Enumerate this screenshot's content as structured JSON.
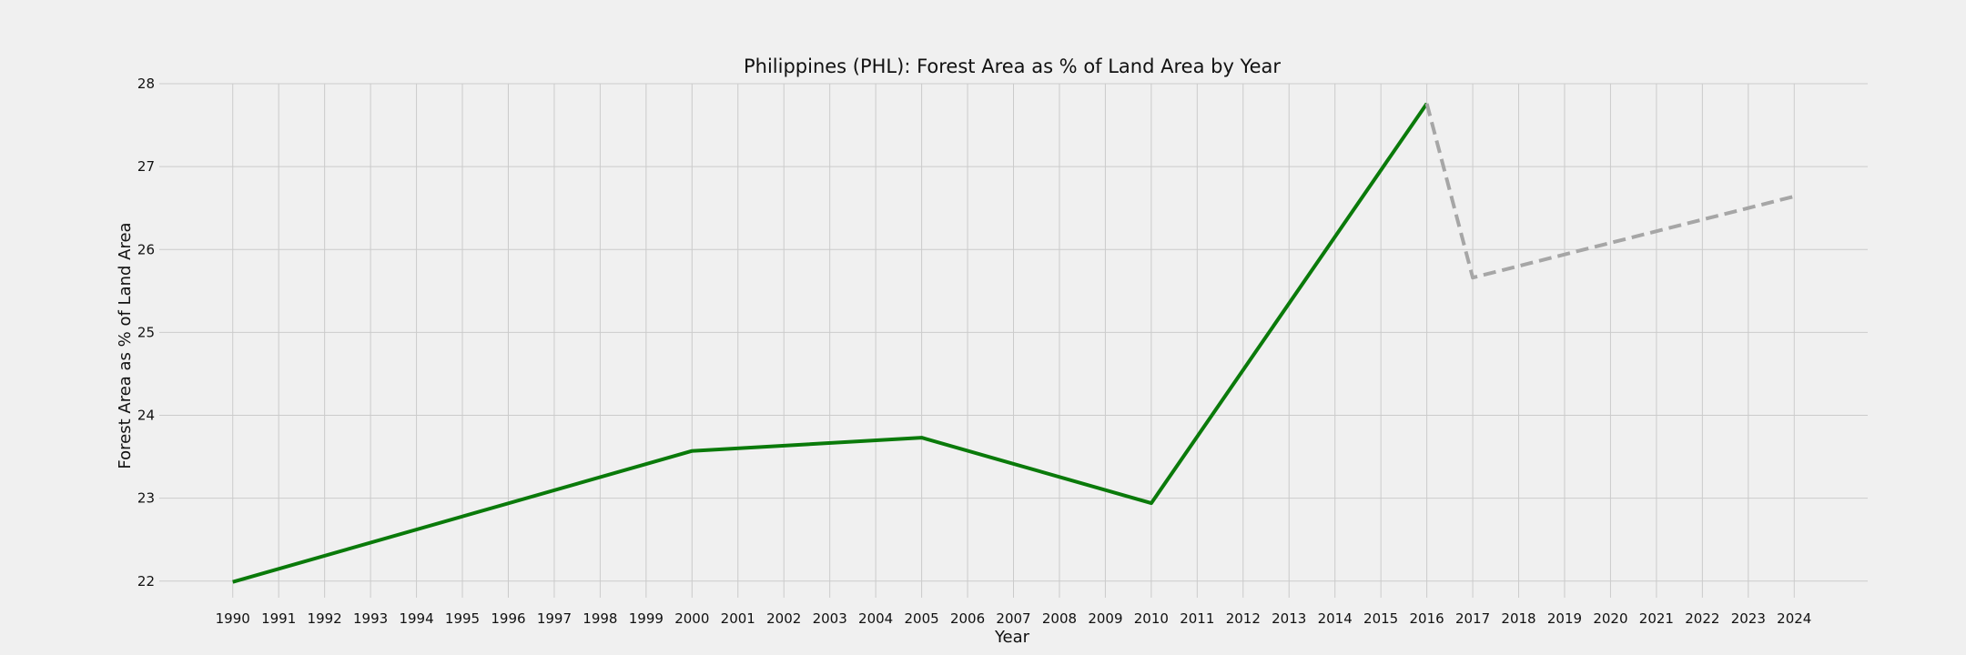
{
  "chart_data": {
    "type": "line",
    "title": "Philippines (PHL): Forest Area as % of Land Area by Year",
    "xlabel": "Year",
    "ylabel": "Forest Area as % of Land Area",
    "x": [
      1990,
      1991,
      1992,
      1993,
      1994,
      1995,
      1996,
      1997,
      1998,
      1999,
      2000,
      2001,
      2002,
      2003,
      2004,
      2005,
      2006,
      2007,
      2008,
      2009,
      2010,
      2011,
      2012,
      2013,
      2014,
      2015,
      2016,
      2017,
      2018,
      2019,
      2020,
      2021,
      2022,
      2023,
      2024
    ],
    "xlim": [
      1988.4,
      2025.6
    ],
    "ylim": [
      21.8,
      28.0
    ],
    "yticks": [
      22,
      23,
      24,
      25,
      26,
      27,
      28
    ],
    "grid": true,
    "series": [
      {
        "style": "solid",
        "color": "#0a7a0a",
        "points": [
          [
            1990,
            21.99
          ],
          [
            2000,
            23.57
          ],
          [
            2005,
            23.73
          ],
          [
            2010,
            22.94
          ],
          [
            2016,
            27.76
          ]
        ]
      },
      {
        "style": "dashed",
        "color": "#a6a6a6",
        "points": [
          [
            2016,
            27.76
          ],
          [
            2017,
            25.66
          ],
          [
            2024,
            26.64
          ]
        ]
      }
    ]
  }
}
